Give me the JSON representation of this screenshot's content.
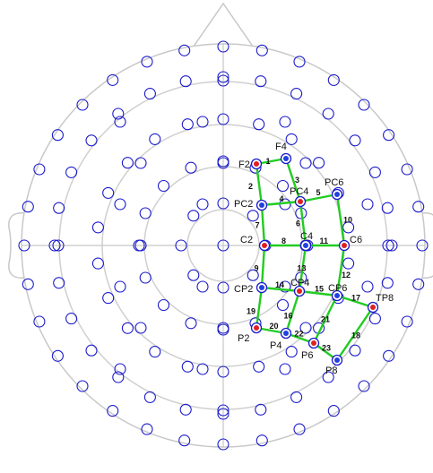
{
  "colors": {
    "outline": "#c8c8c8",
    "grid_electrode": "#1a1acc",
    "edge": "#22cc22",
    "node_red": "#e02020",
    "node_blue": "#2040e0"
  },
  "nodes": [
    {
      "id": "F2",
      "label": "F2",
      "color": "red"
    },
    {
      "id": "F4",
      "label": "F4",
      "color": "blue"
    },
    {
      "id": "PC2",
      "label": "PC2",
      "color": "blue"
    },
    {
      "id": "PC4",
      "label": "PC4",
      "color": "red"
    },
    {
      "id": "PC6",
      "label": "PC6",
      "color": "blue"
    },
    {
      "id": "C2",
      "label": "C2",
      "color": "red"
    },
    {
      "id": "C4",
      "label": "C4",
      "color": "blue"
    },
    {
      "id": "C6",
      "label": "C6",
      "color": "red"
    },
    {
      "id": "CP2",
      "label": "CP2",
      "color": "blue"
    },
    {
      "id": "CP4",
      "label": "CP4",
      "color": "red"
    },
    {
      "id": "CP6",
      "label": "CP6",
      "color": "blue"
    },
    {
      "id": "TP8",
      "label": "TP8",
      "color": "red"
    },
    {
      "id": "P2",
      "label": "P2",
      "color": "red"
    },
    {
      "id": "P4",
      "label": "P4",
      "color": "blue"
    },
    {
      "id": "P6",
      "label": "P6",
      "color": "red"
    },
    {
      "id": "P8",
      "label": "P8",
      "color": "blue"
    }
  ],
  "edges": [
    {
      "label": "1",
      "from": "F2",
      "to": "F4"
    },
    {
      "label": "2",
      "from": "F2",
      "to": "PC2"
    },
    {
      "label": "3",
      "from": "F4",
      "to": "PC4"
    },
    {
      "label": "4",
      "from": "PC2",
      "to": "PC4"
    },
    {
      "label": "5",
      "from": "PC4",
      "to": "PC6"
    },
    {
      "label": "6",
      "from": "PC4",
      "to": "C4"
    },
    {
      "label": "7",
      "from": "PC2",
      "to": "C2"
    },
    {
      "label": "8",
      "from": "C2",
      "to": "C4"
    },
    {
      "label": "9",
      "from": "C2",
      "to": "CP2"
    },
    {
      "label": "10",
      "from": "PC6",
      "to": "C6"
    },
    {
      "label": "11",
      "from": "C4",
      "to": "C6"
    },
    {
      "label": "12",
      "from": "C6",
      "to": "CP6"
    },
    {
      "label": "13",
      "from": "C4",
      "to": "CP4"
    },
    {
      "label": "14",
      "from": "CP2",
      "to": "CP4"
    },
    {
      "label": "15",
      "from": "CP4",
      "to": "CP6"
    },
    {
      "label": "16",
      "from": "CP4",
      "to": "P4"
    },
    {
      "label": "17",
      "from": "CP6",
      "to": "TP8"
    },
    {
      "label": "18",
      "from": "TP8",
      "to": "P8"
    },
    {
      "label": "19",
      "from": "CP2",
      "to": "P2"
    },
    {
      "label": "20",
      "from": "P2",
      "to": "P4"
    },
    {
      "label": "21",
      "from": "CP6",
      "to": "P6"
    },
    {
      "label": "22",
      "from": "P4",
      "to": "P6"
    },
    {
      "label": "23",
      "from": "P6",
      "to": "P8"
    }
  ]
}
